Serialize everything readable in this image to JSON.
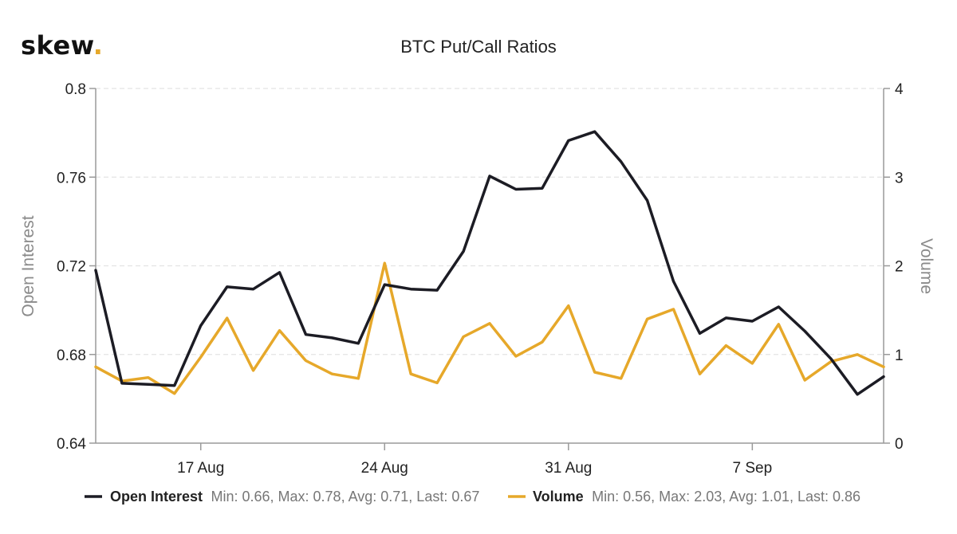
{
  "branding": {
    "logo_text": "skew",
    "logo_dot": "."
  },
  "chart_data": {
    "type": "line",
    "title": "BTC Put/Call Ratios",
    "x_tick_labels": [
      "17 Aug",
      "24 Aug",
      "31 Aug",
      "7 Sep"
    ],
    "y_left": {
      "label": "Open Interest",
      "range": [
        0.64,
        0.8
      ],
      "ticks": [
        "0.64",
        "0.68",
        "0.72",
        "0.76",
        "0.8"
      ]
    },
    "y_right": {
      "label": "Volume",
      "range": [
        0,
        4
      ],
      "ticks": [
        "0",
        "1",
        "2",
        "3",
        "4"
      ]
    },
    "grid": true,
    "legend_position": "bottom",
    "series": [
      {
        "name": "Open Interest",
        "axis": "left",
        "color": "#1c1c24",
        "stats": "Min: 0.66, Max: 0.78, Avg: 0.71, Last: 0.67",
        "values": [
          0.718,
          0.667,
          0.6665,
          0.666,
          0.693,
          0.7105,
          0.7095,
          0.717,
          0.689,
          0.6875,
          0.685,
          0.7115,
          0.7095,
          0.709,
          0.7265,
          0.7605,
          0.7545,
          0.755,
          0.7765,
          0.7805,
          0.767,
          0.7495,
          0.713,
          0.6895,
          0.6965,
          0.695,
          0.7015,
          0.6905,
          0.678,
          0.662,
          0.67
        ]
      },
      {
        "name": "Volume",
        "axis": "right",
        "color": "#e6a82a",
        "stats": "Min: 0.56, Max: 2.03, Avg: 1.01, Last: 0.86",
        "values": [
          0.86,
          0.7,
          0.74,
          0.56,
          0.97,
          1.41,
          0.82,
          1.27,
          0.93,
          0.78,
          0.73,
          2.03,
          0.78,
          0.68,
          1.2,
          1.35,
          0.98,
          1.14,
          1.55,
          0.8,
          0.73,
          1.4,
          1.51,
          0.78,
          1.1,
          0.9,
          1.34,
          0.71,
          0.92,
          1.0,
          0.86
        ]
      }
    ]
  }
}
